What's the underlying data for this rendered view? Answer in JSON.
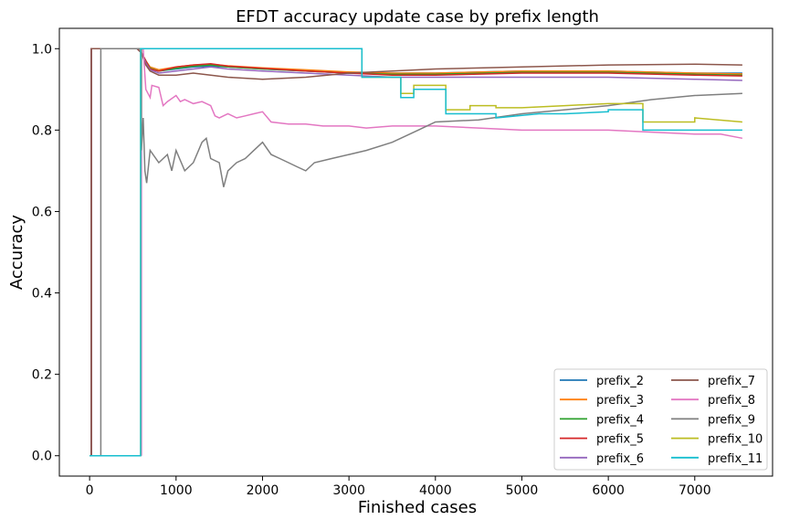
{
  "chart_data": {
    "type": "line",
    "title": "EFDT accuracy update case by prefix length",
    "xlabel": "Finished cases",
    "ylabel": "Accuracy",
    "xlim": [
      -350,
      7900
    ],
    "ylim": [
      -0.05,
      1.05
    ],
    "xticks": [
      0,
      1000,
      2000,
      3000,
      4000,
      5000,
      6000,
      7000
    ],
    "yticks": [
      0.0,
      0.2,
      0.4,
      0.6,
      0.8,
      1.0
    ],
    "xtick_labels": [
      "0",
      "1000",
      "2000",
      "3000",
      "4000",
      "5000",
      "6000",
      "7000"
    ],
    "ytick_labels": [
      "0.0",
      "0.2",
      "0.4",
      "0.6",
      "0.8",
      "1.0"
    ],
    "grid": false,
    "legend": "lower-right",
    "series": [
      {
        "name": "prefix_2",
        "color": "#1f77b4",
        "x": [
          0,
          20,
          20,
          550,
          600,
          650,
          700,
          800,
          1000,
          1200,
          1400,
          1600,
          2000,
          2500,
          3000,
          3500,
          4000,
          5000,
          6000,
          7000,
          7550
        ],
        "y": [
          0.0,
          0.0,
          1.0,
          1.0,
          0.99,
          0.97,
          0.95,
          0.945,
          0.95,
          0.955,
          0.957,
          0.955,
          0.95,
          0.945,
          0.94,
          0.94,
          0.94,
          0.945,
          0.945,
          0.94,
          0.94
        ]
      },
      {
        "name": "prefix_3",
        "color": "#ff7f0e",
        "x": [
          0,
          20,
          20,
          550,
          600,
          650,
          700,
          800,
          1000,
          1200,
          1400,
          1600,
          2000,
          2500,
          3000,
          3500,
          4000,
          5000,
          6000,
          7000,
          7550
        ],
        "y": [
          0.0,
          0.0,
          1.0,
          1.0,
          0.99,
          0.97,
          0.955,
          0.948,
          0.955,
          0.96,
          0.962,
          0.958,
          0.953,
          0.948,
          0.943,
          0.94,
          0.94,
          0.945,
          0.945,
          0.94,
          0.938
        ]
      },
      {
        "name": "prefix_4",
        "color": "#2ca02c",
        "x": [
          0,
          20,
          20,
          550,
          600,
          650,
          700,
          800,
          1000,
          1200,
          1400,
          1600,
          2000,
          2500,
          3000,
          3500,
          4000,
          5000,
          6000,
          7000,
          7550
        ],
        "y": [
          0.0,
          0.0,
          1.0,
          1.0,
          0.99,
          0.97,
          0.952,
          0.945,
          0.952,
          0.957,
          0.96,
          0.955,
          0.95,
          0.945,
          0.94,
          0.937,
          0.937,
          0.942,
          0.942,
          0.937,
          0.935
        ]
      },
      {
        "name": "prefix_5",
        "color": "#d62728",
        "x": [
          0,
          20,
          20,
          550,
          600,
          650,
          700,
          800,
          1000,
          1200,
          1400,
          1600,
          2000,
          2500,
          3000,
          3500,
          4000,
          5000,
          6000,
          7000,
          7550
        ],
        "y": [
          0.0,
          0.0,
          1.0,
          1.0,
          0.99,
          0.97,
          0.95,
          0.945,
          0.955,
          0.96,
          0.963,
          0.957,
          0.952,
          0.945,
          0.94,
          0.935,
          0.935,
          0.94,
          0.94,
          0.935,
          0.933
        ]
      },
      {
        "name": "prefix_6",
        "color": "#9467bd",
        "x": [
          0,
          20,
          20,
          550,
          600,
          650,
          700,
          800,
          1000,
          1200,
          1400,
          1600,
          2000,
          2500,
          3000,
          3500,
          4000,
          5000,
          6000,
          7000,
          7550
        ],
        "y": [
          0.0,
          0.0,
          1.0,
          1.0,
          0.99,
          0.965,
          0.948,
          0.94,
          0.945,
          0.95,
          0.955,
          0.95,
          0.945,
          0.94,
          0.935,
          0.93,
          0.93,
          0.93,
          0.93,
          0.925,
          0.922
        ]
      },
      {
        "name": "prefix_7",
        "color": "#8c564b",
        "x": [
          0,
          20,
          20,
          550,
          600,
          650,
          700,
          800,
          1000,
          1200,
          1400,
          1600,
          2000,
          2500,
          3000,
          3500,
          4000,
          5000,
          6000,
          7000,
          7550
        ],
        "y": [
          0.0,
          0.0,
          1.0,
          1.0,
          0.99,
          0.96,
          0.945,
          0.935,
          0.935,
          0.94,
          0.935,
          0.93,
          0.925,
          0.93,
          0.94,
          0.945,
          0.95,
          0.955,
          0.96,
          0.962,
          0.96
        ]
      },
      {
        "name": "prefix_8",
        "color": "#e377c2",
        "x": [
          600,
          600,
          620,
          650,
          700,
          720,
          800,
          850,
          900,
          1000,
          1050,
          1100,
          1200,
          1300,
          1400,
          1450,
          1500,
          1600,
          1700,
          1800,
          1900,
          2000,
          2100,
          2300,
          2500,
          2700,
          3000,
          3200,
          3500,
          4000,
          4500,
          5000,
          5500,
          6000,
          6500,
          7000,
          7300,
          7550
        ],
        "y": [
          0.0,
          1.0,
          1.0,
          0.9,
          0.88,
          0.91,
          0.905,
          0.86,
          0.87,
          0.885,
          0.87,
          0.875,
          0.865,
          0.87,
          0.86,
          0.835,
          0.83,
          0.84,
          0.83,
          0.835,
          0.84,
          0.845,
          0.82,
          0.815,
          0.815,
          0.81,
          0.81,
          0.805,
          0.81,
          0.81,
          0.805,
          0.8,
          0.8,
          0.8,
          0.795,
          0.79,
          0.79,
          0.78
        ]
      },
      {
        "name": "prefix_9",
        "color": "#7f7f7f",
        "x": [
          0,
          130,
          130,
          600,
          600,
          620,
          640,
          660,
          700,
          800,
          900,
          950,
          1000,
          1100,
          1200,
          1300,
          1350,
          1400,
          1500,
          1550,
          1600,
          1700,
          1800,
          1900,
          2000,
          2100,
          2200,
          2300,
          2400,
          2500,
          2600,
          2800,
          3000,
          3200,
          3500,
          3800,
          4000,
          4500,
          5000,
          5500,
          6000,
          6500,
          7000,
          7550
        ],
        "y": [
          0.0,
          0.0,
          1.0,
          1.0,
          0.75,
          0.83,
          0.7,
          0.67,
          0.75,
          0.72,
          0.74,
          0.7,
          0.75,
          0.7,
          0.72,
          0.77,
          0.78,
          0.73,
          0.72,
          0.66,
          0.7,
          0.72,
          0.73,
          0.75,
          0.77,
          0.74,
          0.73,
          0.72,
          0.71,
          0.7,
          0.72,
          0.73,
          0.74,
          0.75,
          0.77,
          0.8,
          0.82,
          0.825,
          0.84,
          0.85,
          0.86,
          0.875,
          0.885,
          0.89
        ]
      },
      {
        "name": "prefix_10",
        "color": "#bcbd22",
        "x": [
          0,
          590,
          590,
          3150,
          3150,
          3600,
          3600,
          3750,
          3750,
          4120,
          4120,
          4400,
          4400,
          4700,
          4700,
          5000,
          5500,
          6000,
          6400,
          6400,
          7000,
          7000,
          7550
        ],
        "y": [
          0.0,
          0.0,
          1.0,
          1.0,
          0.93,
          0.93,
          0.89,
          0.89,
          0.91,
          0.91,
          0.85,
          0.85,
          0.86,
          0.86,
          0.855,
          0.855,
          0.86,
          0.865,
          0.865,
          0.82,
          0.82,
          0.83,
          0.82
        ]
      },
      {
        "name": "prefix_11",
        "color": "#17becf",
        "x": [
          0,
          590,
          590,
          3150,
          3150,
          3600,
          3600,
          3750,
          3750,
          4120,
          4120,
          4700,
          4700,
          5200,
          5500,
          6000,
          6000,
          6400,
          6400,
          7000,
          7000,
          7550
        ],
        "y": [
          0.0,
          0.0,
          1.0,
          1.0,
          0.93,
          0.93,
          0.88,
          0.88,
          0.9,
          0.9,
          0.84,
          0.84,
          0.83,
          0.84,
          0.84,
          0.845,
          0.85,
          0.85,
          0.8,
          0.8,
          0.8,
          0.8
        ]
      }
    ]
  }
}
